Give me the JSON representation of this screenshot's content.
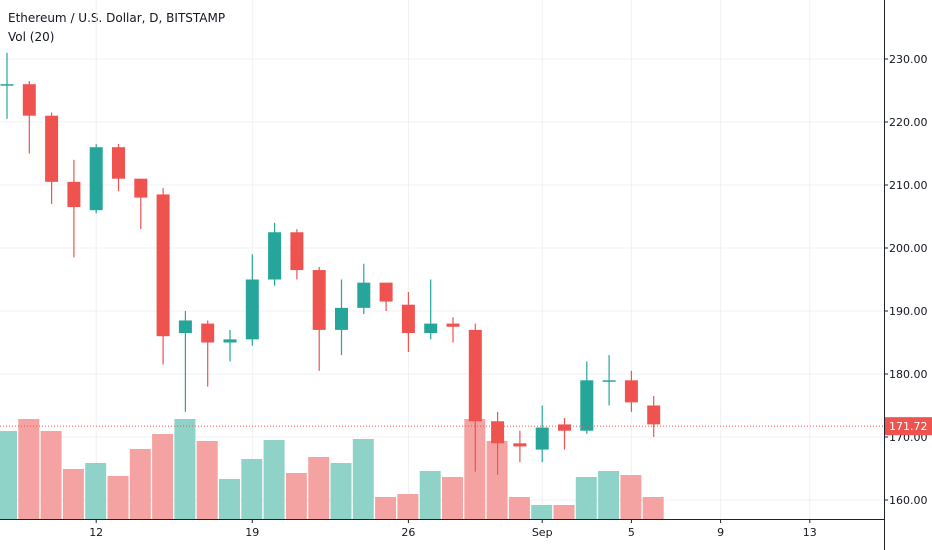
{
  "header": {
    "title": "Ethereum / U.S. Dollar, D, BITSTAMP",
    "indicator": "Vol (20)"
  },
  "colors": {
    "up": "#26a69a",
    "down": "#ef5350",
    "vol_up": "#8fd3c8",
    "vol_down": "#f5a3a2",
    "grid": "#eef0f3",
    "axis_border": "#1e222d",
    "price_line": "#ef5350",
    "price_badge": "#ef5350"
  },
  "chart_data": {
    "type": "candlestick",
    "symbol": "ETHUSD",
    "interval": "D",
    "exchange": "BITSTAMP",
    "x_ticks": [
      {
        "index": 4,
        "label": "12"
      },
      {
        "index": 11,
        "label": "19"
      },
      {
        "index": 18,
        "label": "26"
      },
      {
        "index": 24,
        "label": "Sep"
      },
      {
        "index": 28,
        "label": "5"
      },
      {
        "index": 32,
        "label": "9"
      },
      {
        "index": 36,
        "label": "13"
      }
    ],
    "y_ticks": [
      160,
      170,
      180,
      190,
      200,
      210,
      220,
      230
    ],
    "y_tick_labels": [
      "160.00",
      "170.00",
      "180.00",
      "190.00",
      "200.00",
      "210.00",
      "220.00",
      "230.00"
    ],
    "ylim": [
      155,
      237
    ],
    "last_price": 171.72,
    "last_price_label": "171.72",
    "candles": [
      {
        "o": 226.0,
        "h": 231.0,
        "l": 220.5,
        "c": 226.0
      },
      {
        "o": 226.0,
        "h": 226.5,
        "l": 215.0,
        "c": 221.0
      },
      {
        "o": 221.0,
        "h": 221.5,
        "l": 207.0,
        "c": 210.5
      },
      {
        "o": 210.5,
        "h": 214.0,
        "l": 198.5,
        "c": 206.5
      },
      {
        "o": 206.0,
        "h": 216.5,
        "l": 205.5,
        "c": 216.0
      },
      {
        "o": 216.0,
        "h": 216.5,
        "l": 209.0,
        "c": 211.0
      },
      {
        "o": 211.0,
        "h": 211.0,
        "l": 203.0,
        "c": 208.0
      },
      {
        "o": 208.5,
        "h": 209.5,
        "l": 181.5,
        "c": 186.0
      },
      {
        "o": 186.5,
        "h": 190.0,
        "l": 174.0,
        "c": 188.5
      },
      {
        "o": 188.0,
        "h": 188.5,
        "l": 178.0,
        "c": 185.0
      },
      {
        "o": 185.0,
        "h": 187.0,
        "l": 182.0,
        "c": 185.5
      },
      {
        "o": 185.5,
        "h": 199.0,
        "l": 184.5,
        "c": 195.0
      },
      {
        "o": 195.0,
        "h": 204.0,
        "l": 194.0,
        "c": 202.5
      },
      {
        "o": 202.5,
        "h": 203.0,
        "l": 195.0,
        "c": 196.5
      },
      {
        "o": 196.5,
        "h": 197.0,
        "l": 180.5,
        "c": 187.0
      },
      {
        "o": 187.0,
        "h": 195.0,
        "l": 183.0,
        "c": 190.5
      },
      {
        "o": 190.5,
        "h": 197.5,
        "l": 189.5,
        "c": 194.5
      },
      {
        "o": 194.5,
        "h": 194.5,
        "l": 190.0,
        "c": 191.5
      },
      {
        "o": 191.0,
        "h": 193.0,
        "l": 183.5,
        "c": 186.5
      },
      {
        "o": 186.5,
        "h": 195.0,
        "l": 185.5,
        "c": 188.0
      },
      {
        "o": 188.0,
        "h": 189.0,
        "l": 185.0,
        "c": 187.5
      },
      {
        "o": 187.0,
        "h": 188.0,
        "l": 164.5,
        "c": 172.5
      },
      {
        "o": 172.5,
        "h": 174.0,
        "l": 164.0,
        "c": 169.0
      },
      {
        "o": 169.0,
        "h": 171.0,
        "l": 166.0,
        "c": 168.5
      },
      {
        "o": 168.0,
        "h": 175.0,
        "l": 166.0,
        "c": 171.5
      },
      {
        "o": 172.0,
        "h": 173.0,
        "l": 168.0,
        "c": 171.0
      },
      {
        "o": 171.0,
        "h": 182.0,
        "l": 170.5,
        "c": 179.0
      },
      {
        "o": 179.0,
        "h": 183.0,
        "l": 175.0,
        "c": 179.0
      },
      {
        "o": 179.0,
        "h": 180.5,
        "l": 174.0,
        "c": 175.5
      },
      {
        "o": 175.0,
        "h": 176.5,
        "l": 170.0,
        "c": 172.0
      }
    ],
    "volumes": [
      {
        "v": 0.88,
        "up": true
      },
      {
        "v": 1.0,
        "up": false
      },
      {
        "v": 0.88,
        "up": false
      },
      {
        "v": 0.5,
        "up": false
      },
      {
        "v": 0.56,
        "up": true
      },
      {
        "v": 0.43,
        "up": false
      },
      {
        "v": 0.7,
        "up": false
      },
      {
        "v": 0.85,
        "up": false
      },
      {
        "v": 1.0,
        "up": true
      },
      {
        "v": 0.78,
        "up": false
      },
      {
        "v": 0.4,
        "up": true
      },
      {
        "v": 0.6,
        "up": true
      },
      {
        "v": 0.79,
        "up": true
      },
      {
        "v": 0.46,
        "up": false
      },
      {
        "v": 0.62,
        "up": false
      },
      {
        "v": 0.56,
        "up": true
      },
      {
        "v": 0.8,
        "up": true
      },
      {
        "v": 0.22,
        "up": false
      },
      {
        "v": 0.25,
        "up": false
      },
      {
        "v": 0.48,
        "up": true
      },
      {
        "v": 0.42,
        "up": false
      },
      {
        "v": 1.0,
        "up": false
      },
      {
        "v": 0.78,
        "up": false
      },
      {
        "v": 0.22,
        "up": false
      },
      {
        "v": 0.14,
        "up": true
      },
      {
        "v": 0.14,
        "up": false
      },
      {
        "v": 0.42,
        "up": true
      },
      {
        "v": 0.48,
        "up": true
      },
      {
        "v": 0.44,
        "up": false
      },
      {
        "v": 0.22,
        "up": false
      }
    ]
  }
}
